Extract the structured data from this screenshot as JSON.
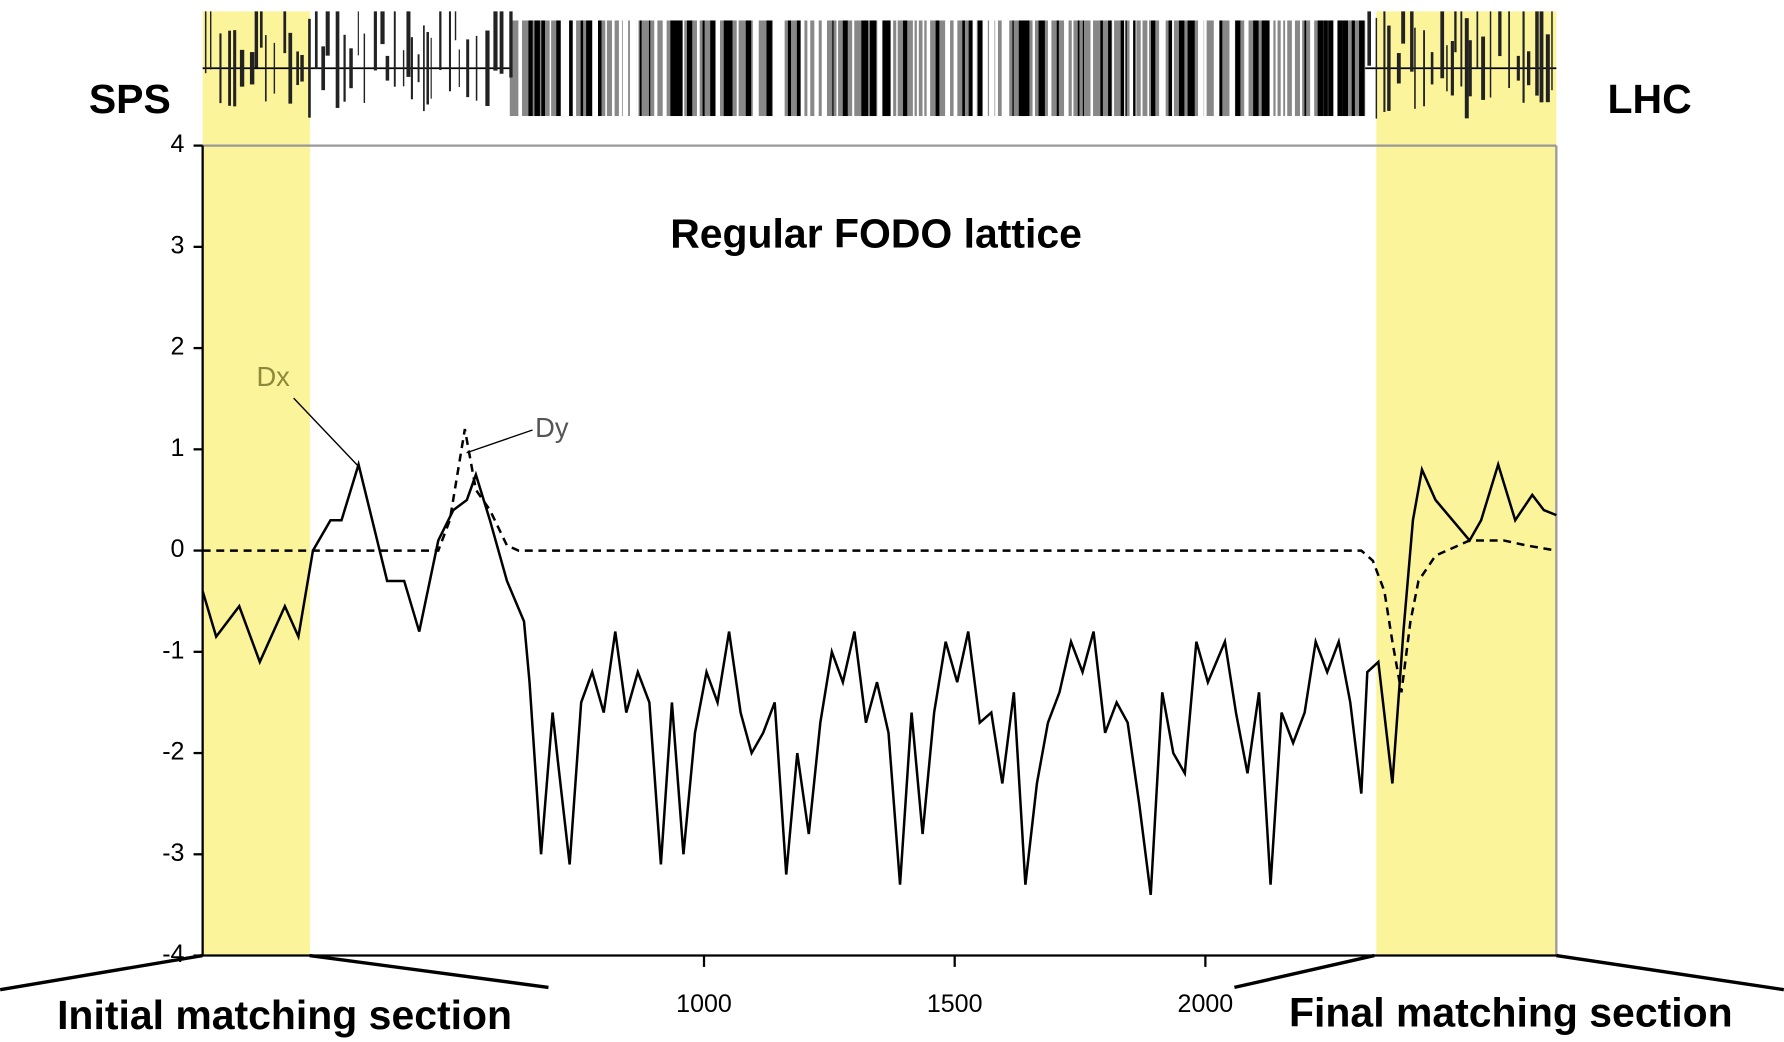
{
  "chart_data": {
    "type": "line",
    "annotations": {
      "left_end": "SPS",
      "right_end": "LHC",
      "center": "Regular FODO lattice",
      "left_region": "Initial matching section",
      "right_region": "Final matching section"
    },
    "xlim": [
      0,
      2700
    ],
    "xticks": [
      1000,
      1500,
      2000
    ],
    "ylim": [
      -4,
      4
    ],
    "yticks": [
      -4,
      -3,
      -2,
      -1,
      0,
      1,
      2,
      3,
      4
    ],
    "highlight_regions": [
      [
        0,
        214
      ],
      [
        2341,
        2700
      ]
    ],
    "highlight_color": "#fbf49a",
    "series": [
      {
        "name": "Dx",
        "color": "#000000",
        "label_color": "#8a8a3a",
        "dash": false,
        "x": [
          0,
          27,
          73,
          114,
          164,
          191,
          220,
          255,
          277,
          311,
          368,
          402,
          432,
          470,
          500,
          527,
          545,
          573,
          607,
          641,
          652,
          675,
          698,
          709,
          732,
          755,
          777,
          800,
          823,
          845,
          868,
          891,
          914,
          936,
          959,
          982,
          1005,
          1027,
          1050,
          1073,
          1095,
          1118,
          1141,
          1164,
          1186,
          1209,
          1232,
          1255,
          1277,
          1300,
          1323,
          1345,
          1368,
          1391,
          1414,
          1436,
          1459,
          1482,
          1505,
          1527,
          1550,
          1573,
          1595,
          1618,
          1641,
          1664,
          1686,
          1709,
          1732,
          1755,
          1777,
          1800,
          1823,
          1845,
          1868,
          1891,
          1914,
          1936,
          1959,
          1982,
          2005,
          2039,
          2061,
          2084,
          2107,
          2130,
          2152,
          2175,
          2198,
          2220,
          2243,
          2266,
          2289,
          2311,
          2323,
          2345,
          2373,
          2395,
          2414,
          2432,
          2459,
          2493,
          2527,
          2550,
          2584,
          2618,
          2652,
          2675,
          2700
        ],
        "values": [
          -0.4,
          -0.85,
          -0.55,
          -1.1,
          -0.55,
          -0.85,
          0.0,
          0.3,
          0.3,
          0.85,
          -0.3,
          -0.3,
          -0.8,
          0.1,
          0.4,
          0.5,
          0.75,
          0.3,
          -0.3,
          -0.7,
          -1.3,
          -3.0,
          -1.6,
          -2.1,
          -3.1,
          -1.5,
          -1.2,
          -1.6,
          -0.8,
          -1.6,
          -1.2,
          -1.5,
          -3.1,
          -1.5,
          -3.0,
          -1.8,
          -1.2,
          -1.5,
          -0.8,
          -1.6,
          -2.0,
          -1.8,
          -1.5,
          -3.2,
          -2.0,
          -2.8,
          -1.7,
          -1.0,
          -1.3,
          -0.8,
          -1.7,
          -1.3,
          -1.8,
          -3.3,
          -1.6,
          -2.8,
          -1.6,
          -0.9,
          -1.3,
          -0.8,
          -1.7,
          -1.6,
          -2.3,
          -1.4,
          -3.3,
          -2.3,
          -1.7,
          -1.4,
          -0.9,
          -1.2,
          -0.8,
          -1.8,
          -1.5,
          -1.7,
          -2.5,
          -3.4,
          -1.4,
          -2.0,
          -2.2,
          -0.9,
          -1.3,
          -0.9,
          -1.6,
          -2.2,
          -1.4,
          -3.3,
          -1.6,
          -1.9,
          -1.6,
          -0.9,
          -1.2,
          -0.9,
          -1.5,
          -2.4,
          -1.2,
          -1.1,
          -2.3,
          -0.8,
          0.3,
          0.8,
          0.5,
          0.3,
          0.1,
          0.3,
          0.85,
          0.3,
          0.55,
          0.4,
          0.35
        ]
      },
      {
        "name": "Dy",
        "color": "#000000",
        "label_color": "#555555",
        "dash": true,
        "x": [
          0,
          220,
          470,
          493,
          523,
          545,
          573,
          607,
          630,
          2311,
          2334,
          2357,
          2373,
          2391,
          2409,
          2425,
          2459,
          2527,
          2595,
          2641,
          2700
        ],
        "values": [
          0,
          0,
          0,
          0.3,
          1.2,
          0.6,
          0.4,
          0.05,
          0,
          0,
          -0.1,
          -0.4,
          -0.9,
          -1.4,
          -0.7,
          -0.3,
          -0.05,
          0.1,
          0.1,
          0.05,
          0
        ]
      }
    ]
  }
}
